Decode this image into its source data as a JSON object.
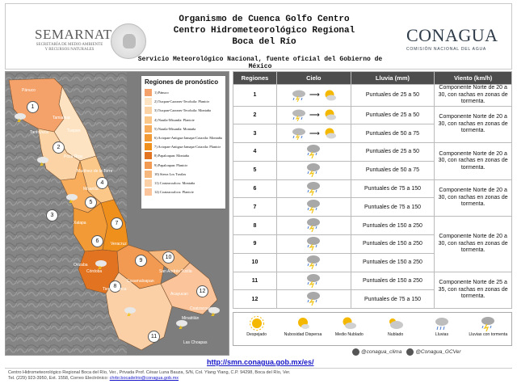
{
  "header": {
    "semarnat_name": "SEMARNAT",
    "semarnat_sub": "SECRETARÍA DE MEDIO AMBIENTE Y RECURSOS NATURALES",
    "org_line1": "Organismo de Cuenca Golfo Centro",
    "org_line2": "Centro Hidrometeorológico Regional",
    "org_line3": "Boca del Río",
    "service": "Servicio Meteorológico Nacional, fuente oficial del Gobierno de México",
    "conagua_name": "CONAGUA",
    "conagua_sub": "COMISIÓN NACIONAL DEL AGUA"
  },
  "legend": {
    "title": "Regiones de pronóstico",
    "items": [
      {
        "label": "1) Pánuco",
        "color": "#f5a26a"
      },
      {
        "label": "2) Tuxpan-Cazones-Tecolutla: Planicie",
        "color": "#fde3c2"
      },
      {
        "label": "3) Tuxpan-Cazones-Tecolutla: Montaña",
        "color": "#fbd3a4"
      },
      {
        "label": "4) Nautla-Misantla: Planicie",
        "color": "#fcc88a"
      },
      {
        "label": "5) Nautla-Misantla: Montaña",
        "color": "#f7ad5c"
      },
      {
        "label": "6) Actopan-Antigua-Jamapa-Cotaxtla: Montaña",
        "color": "#f29b36"
      },
      {
        "label": "7) Actopan-Antigua-Jamapa-Cotaxtla: Planicie",
        "color": "#ef8f1c"
      },
      {
        "label": "8) Papaloapan: Montaña",
        "color": "#e27421"
      },
      {
        "label": "9) Papaloapan: Planicie",
        "color": "#f29a52"
      },
      {
        "label": "10) Sierra Los Tuxtlas",
        "color": "#f7b87e"
      },
      {
        "label": "11) Coatzacoalcos: Montaña",
        "color": "#fcd0a6"
      },
      {
        "label": "12) Coatzacoalcos: Planicie",
        "color": "#fbc49a"
      }
    ]
  },
  "table": {
    "headers": [
      "Regiones",
      "Cielo",
      "Lluvia (mm)",
      "Viento (km/h)"
    ],
    "rows": [
      {
        "region": "1",
        "rain": "Puntuales de 25 a 50",
        "sky": "cloud-rain-to-partly"
      },
      {
        "region": "2",
        "rain": "Puntuales de 25 a 50",
        "sky": "cloud-rain-to-partly"
      },
      {
        "region": "3",
        "rain": "Puntuales de 50 a 75",
        "sky": "cloud-rain-to-partly"
      },
      {
        "region": "4",
        "rain": "Puntuales de 25 a 50",
        "sky": "storm"
      },
      {
        "region": "5",
        "rain": "Puntuales de 50 a 75",
        "sky": "storm"
      },
      {
        "region": "6",
        "rain": "Puntuales de 75 a 150",
        "sky": "storm"
      },
      {
        "region": "7",
        "rain": "Puntuales de 75 a 150",
        "sky": "storm"
      },
      {
        "region": "8",
        "rain": "Puntuales de 150 a 250",
        "sky": "storm"
      },
      {
        "region": "9",
        "rain": "Puntuales de 150 a 250",
        "sky": "storm"
      },
      {
        "region": "10",
        "rain": "Puntuales de 150 a 250",
        "sky": "storm"
      },
      {
        "region": "11",
        "rain": "Puntuales de 150 a 250",
        "sky": "storm"
      },
      {
        "region": "12",
        "rain": "Puntuales de 75 a 150",
        "sky": "storm"
      }
    ],
    "wind": {
      "w1": "Componente Norte de 20 a 30, con rachas en zonas de tormenta.",
      "w2": "Componente Norte de 20 a 30, con rachas en zonas de tormenta.",
      "w3": "Componente Norte de 20 a 30, con rachas en zonas de tormenta.",
      "w4": "Componente Norte de 20 a 30, con rachas en zonas de tormenta.",
      "w5": "Componente Norte de 20 a 30, con rachas en zonas de tormenta.",
      "w6": "Componente Norte de 25 a 35, con rachas en zonas de tormenta."
    }
  },
  "icon_legend": [
    {
      "label": "Despejado",
      "icon": "sun-icon"
    },
    {
      "label": "Nubosidad Dispersa",
      "icon": "sun-small-cloud-icon"
    },
    {
      "label": "Medio Nublado",
      "icon": "partly-cloudy-icon"
    },
    {
      "label": "Nublado",
      "icon": "cloudy-icon"
    },
    {
      "label": "Lluvias",
      "icon": "rain-icon"
    },
    {
      "label": "Lluvias con tormenta",
      "icon": "storm-icon"
    }
  ],
  "map_labels": {
    "cities": [
      "Tantoyuca",
      "Tuxpan",
      "Poza Rica",
      "Martínez de la Torre",
      "Misantla",
      "Xalapa",
      "Veracruz",
      "Córdoba",
      "Orizaba",
      "Cosamaloapan",
      "Tierra Blanca",
      "Acayucan",
      "Coatzacoalcos",
      "Las Choapas",
      "Pánuco",
      "Tamiahua",
      "San Andrés Tuxtla",
      "Minatitlán"
    ]
  },
  "footer": {
    "url": "http://smn.conagua.gob.mx/es/",
    "twitter1": "@conagua_clima",
    "twitter2": "@Conagua_GCVer",
    "address": "Centro Hidrometeorológico Regional Boca del Río, Ver., Privada Prof. César Luna Bauza, S/N, Col. Ylang Ylang, C.P. 94298, Boca del Río, Ver.",
    "contact": "Tel. (229) 923-3950, Ext. 1558, Correo Electrónico:",
    "email": "chrbr.bocadelrio@conagua.gob.mx"
  },
  "colors": {
    "header_bg": "#4d4d4d",
    "link": "#1414c8",
    "map_bg": "#8a8a8a"
  }
}
